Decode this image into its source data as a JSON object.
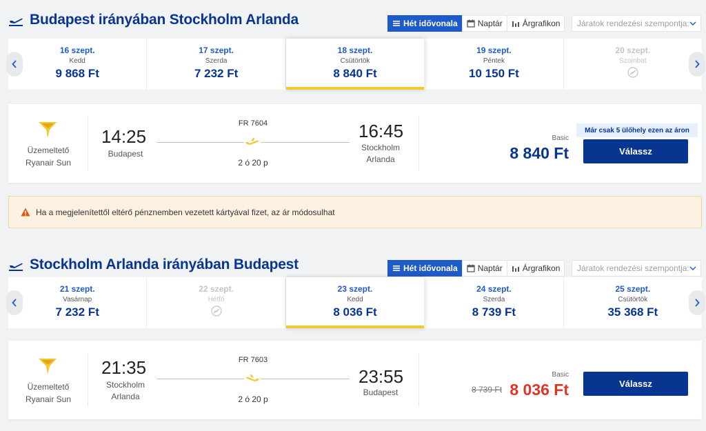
{
  "colors": {
    "brand": "#073590",
    "accent": "#1e5bc6",
    "highlight": "#f1c933",
    "sale": "#e03523"
  },
  "toolbar": {
    "week_view": "Hét idővonala",
    "calendar": "Naptár",
    "price_chart": "Árgrafikon",
    "sort_placeholder": "Járatok rendezési szempontja:"
  },
  "outbound": {
    "title": "Budapest irányában Stockholm Arlanda",
    "dates": [
      {
        "date": "16 szept.",
        "weekday": "Kedd",
        "price": "9 868 Ft",
        "state": "normal"
      },
      {
        "date": "17 szept.",
        "weekday": "Szerda",
        "price": "7 232 Ft",
        "state": "normal"
      },
      {
        "date": "18 szept.",
        "weekday": "Csütörtök",
        "price": "8 840 Ft",
        "state": "selected"
      },
      {
        "date": "19 szept.",
        "weekday": "Péntek",
        "price": "10 150 Ft",
        "state": "normal"
      },
      {
        "date": "20 szept.",
        "weekday": "Szombat",
        "price": "",
        "state": "disabled"
      }
    ],
    "flight": {
      "operator_label": "Üzemeltető",
      "operator_name": "Ryanair Sun",
      "dep_time": "14:25",
      "dep_city": "Budapest",
      "arr_time": "16:45",
      "arr_city": "Stockholm Arlanda",
      "flight_no": "FR 7604",
      "duration": "2 ó 20 p",
      "fare_type": "Basic",
      "price": "8 840 Ft",
      "seats_left": "Már csak 5 ülőhely ezen az áron",
      "button": "Válassz"
    }
  },
  "alert": {
    "text": "Ha a megjelenítettől eltérő pénznemben vezetett kártyával fizet, az ár módosulhat"
  },
  "inbound": {
    "title": "Stockholm Arlanda irányában Budapest",
    "dates": [
      {
        "date": "21 szept.",
        "weekday": "Vasárnap",
        "price": "7 232 Ft",
        "state": "normal"
      },
      {
        "date": "22 szept.",
        "weekday": "Hétfő",
        "price": "",
        "state": "disabled"
      },
      {
        "date": "23 szept.",
        "weekday": "Kedd",
        "price": "8 036 Ft",
        "state": "selected"
      },
      {
        "date": "24 szept.",
        "weekday": "Szerda",
        "price": "8 739 Ft",
        "state": "normal"
      },
      {
        "date": "25 szept.",
        "weekday": "Csütörtök",
        "price": "35 368 Ft",
        "state": "normal"
      }
    ],
    "flight": {
      "operator_label": "Üzemeltető",
      "operator_name": "Ryanair Sun",
      "dep_time": "21:35",
      "dep_city": "Stockholm Arlanda",
      "arr_time": "23:55",
      "arr_city": "Budapest",
      "flight_no": "FR 7603",
      "duration": "2 ó 20 p",
      "fare_type": "Basic",
      "old_price": "8 739 Ft",
      "price": "8 036 Ft",
      "button": "Válassz"
    }
  }
}
